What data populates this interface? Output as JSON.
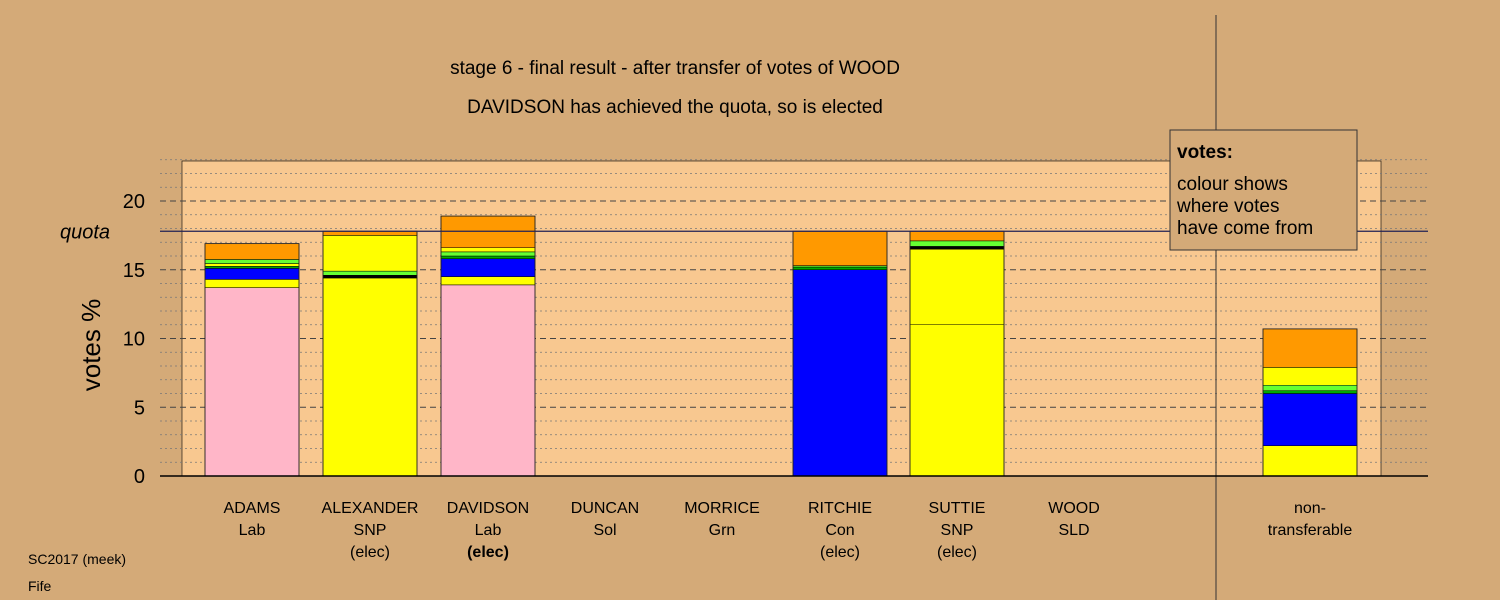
{
  "chart_data": {
    "type": "bar",
    "stacked": true,
    "title_lines": [
      "stage 6 - final result - after transfer of votes of WOOD",
      "DAVIDSON has achieved the quota, so is elected"
    ],
    "ylabel": "votes %",
    "ylim": [
      0,
      23
    ],
    "yticks": [
      0,
      5,
      10,
      15,
      20
    ],
    "quota": {
      "label": "quota",
      "value": 17.8
    },
    "categories": [
      {
        "lines": [
          "ADAMS",
          "Lab"
        ],
        "bold_last": false
      },
      {
        "lines": [
          "ALEXANDER",
          "SNP",
          "(elec)"
        ],
        "bold_last": false
      },
      {
        "lines": [
          "DAVIDSON",
          "Lab",
          "(elec)"
        ],
        "bold_last": true
      },
      {
        "lines": [
          "DUNCAN",
          "Sol"
        ],
        "bold_last": false
      },
      {
        "lines": [
          "MORRICE",
          "Grn"
        ],
        "bold_last": false
      },
      {
        "lines": [
          "RITCHIE",
          "Con",
          "(elec)"
        ],
        "bold_last": false
      },
      {
        "lines": [
          "SUTTIE",
          "SNP",
          "(elec)"
        ],
        "bold_last": false
      },
      {
        "lines": [
          "WOOD",
          "SLD"
        ],
        "bold_last": false
      },
      {
        "lines": [
          "non-",
          "transferable"
        ],
        "bold_last": false
      }
    ],
    "bars": [
      [
        {
          "value": 13.7,
          "color": "#ffb6c8"
        },
        {
          "value": 0.6,
          "color": "#ffff00"
        },
        {
          "value": 0.8,
          "color": "#0000ff"
        },
        {
          "value": 0.15,
          "color": "#00aa00"
        },
        {
          "value": 0.2,
          "color": "#ffff00"
        },
        {
          "value": 0.3,
          "color": "#66ff33"
        },
        {
          "value": 1.15,
          "color": "#ff9900"
        }
      ],
      [
        {
          "value": 14.4,
          "color": "#ffff00"
        },
        {
          "value": 0.2,
          "color": "#000000"
        },
        {
          "value": 0.3,
          "color": "#66ff33"
        },
        {
          "value": 2.6,
          "color": "#ffff00"
        },
        {
          "value": 0.3,
          "color": "#ff9900"
        }
      ],
      [
        {
          "value": 13.9,
          "color": "#ffb6c8"
        },
        {
          "value": 0.6,
          "color": "#ffff00"
        },
        {
          "value": 1.3,
          "color": "#0000ff"
        },
        {
          "value": 0.2,
          "color": "#00aa00"
        },
        {
          "value": 0.3,
          "color": "#66ff33"
        },
        {
          "value": 0.3,
          "color": "#ffff00"
        },
        {
          "value": 2.3,
          "color": "#ff9900"
        }
      ],
      [],
      [],
      [
        {
          "value": 15.0,
          "color": "#0000ff"
        },
        {
          "value": 0.2,
          "color": "#00aa00"
        },
        {
          "value": 0.1,
          "color": "#66ff33"
        },
        {
          "value": 2.5,
          "color": "#ff9900"
        }
      ],
      [
        {
          "value": 11.0,
          "color": "#ffff00"
        },
        {
          "value": 5.5,
          "color": "#ffff00"
        },
        {
          "value": 0.2,
          "color": "#000000"
        },
        {
          "value": 0.4,
          "color": "#66ff33"
        },
        {
          "value": 0.7,
          "color": "#ff9900"
        }
      ],
      [],
      [
        {
          "value": 2.2,
          "color": "#ffff00"
        },
        {
          "value": 3.8,
          "color": "#0000ff"
        },
        {
          "value": 0.2,
          "color": "#00aa00"
        },
        {
          "value": 0.4,
          "color": "#66ff33"
        },
        {
          "value": 1.3,
          "color": "#ffff00"
        },
        {
          "value": 2.8,
          "color": "#ff9900"
        }
      ]
    ],
    "legend": {
      "title": "votes:",
      "lines": [
        "colour shows",
        "where votes",
        "have come from"
      ],
      "placement": "top-right"
    },
    "colors": {
      "background": "#d4aa78",
      "plot_area": "#f8c890"
    }
  },
  "footer": {
    "line1": "SC2017 (meek)",
    "line2": "Fife"
  }
}
